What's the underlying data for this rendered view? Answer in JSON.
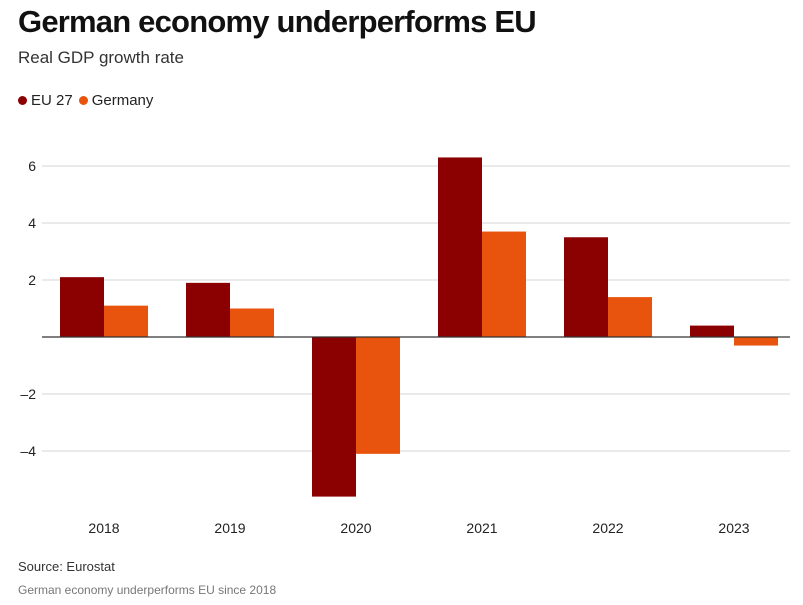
{
  "title": "German economy underperforms EU",
  "subtitle": "Real GDP growth rate",
  "source": "Source: Eurostat",
  "caption": "German economy underperforms EU since 2018",
  "colors": {
    "eu27": "#8b0000",
    "germany": "#e8530e",
    "grid": "#d4d4d4",
    "zero": "#333333"
  },
  "chart_data": {
    "type": "bar",
    "categories": [
      "2018",
      "2019",
      "2020",
      "2021",
      "2022",
      "2023"
    ],
    "series": [
      {
        "name": "EU 27",
        "color": "#8b0000",
        "values": [
          2.1,
          1.9,
          -5.6,
          6.3,
          3.5,
          0.4
        ]
      },
      {
        "name": "Germany",
        "color": "#e8530e",
        "values": [
          1.1,
          1.0,
          -4.1,
          3.7,
          1.4,
          -0.3
        ]
      }
    ],
    "yticks": [
      6,
      4,
      2,
      -2,
      -4
    ],
    "ytick_labels": [
      "6",
      "4",
      "2",
      "–2",
      "–4"
    ],
    "ylim": [
      -6,
      7
    ],
    "grid": true,
    "legend_position": "top-left",
    "title": "German economy underperforms EU",
    "subtitle": "Real GDP growth rate",
    "xlabel": "",
    "ylabel": ""
  }
}
